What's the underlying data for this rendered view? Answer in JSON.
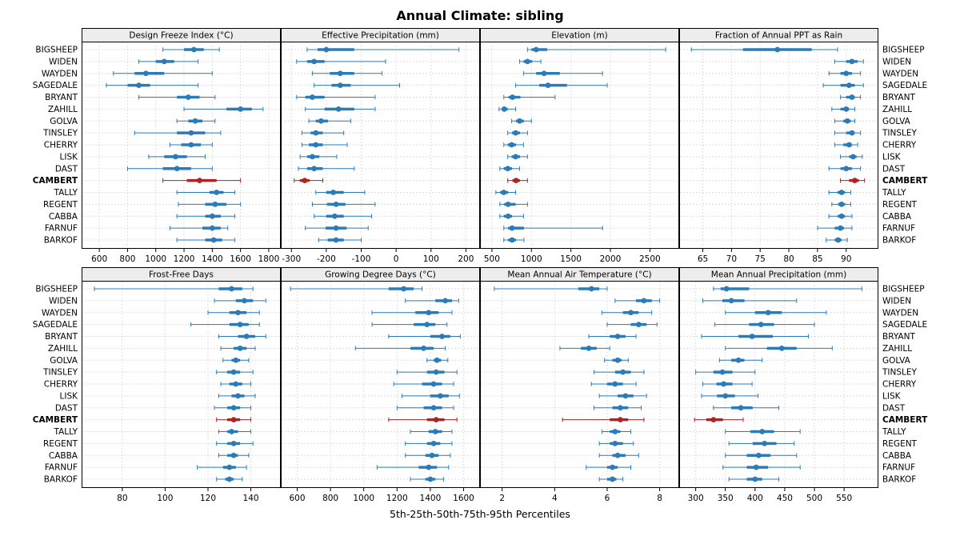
{
  "chart_data": {
    "type": "dotplot",
    "title": "Annual Climate: sibling",
    "caption": "5th-25th-50th-75th-95th Percentiles",
    "percentiles": [
      "5th",
      "25th",
      "50th",
      "75th",
      "95th"
    ],
    "layout": {
      "rows": 2,
      "cols": 4,
      "grid": "dotted",
      "legend": "none",
      "site_labels": "both-sides"
    },
    "colors": {
      "series": "#2b7bb9",
      "highlight": "#b22222",
      "strip_bg": "#ededed",
      "grid": "#bdbdbd",
      "border": "#000000"
    },
    "highlight_site": "CAMBERT",
    "sites": [
      "BIGSHEEP",
      "WIDEN",
      "WAYDEN",
      "SAGEDALE",
      "BRYANT",
      "ZAHILL",
      "GOLVA",
      "TINSLEY",
      "CHERRY",
      "LISK",
      "DAST",
      "CAMBERT",
      "TALLY",
      "REGENT",
      "CABBA",
      "FARNUF",
      "BARKOF"
    ],
    "panels": [
      {
        "title": "Design Freeze Index (°C)",
        "ticks": [
          600,
          800,
          1000,
          1200,
          1400,
          1600,
          1800
        ],
        "xlim": [
          520,
          1840
        ],
        "values": [
          [
            1050,
            1200,
            1270,
            1340,
            1450
          ],
          [
            880,
            1000,
            1060,
            1130,
            1300
          ],
          [
            700,
            850,
            930,
            1060,
            1400
          ],
          [
            650,
            800,
            880,
            960,
            1300
          ],
          [
            880,
            1150,
            1230,
            1310,
            1420
          ],
          [
            1200,
            1500,
            1600,
            1680,
            1760
          ],
          [
            1150,
            1230,
            1280,
            1330,
            1420
          ],
          [
            850,
            1150,
            1250,
            1350,
            1460
          ],
          [
            1100,
            1180,
            1250,
            1320,
            1400
          ],
          [
            950,
            1060,
            1140,
            1220,
            1350
          ],
          [
            800,
            1050,
            1150,
            1250,
            1400
          ],
          [
            1050,
            1220,
            1310,
            1430,
            1600
          ],
          [
            1150,
            1380,
            1430,
            1480,
            1560
          ],
          [
            1160,
            1350,
            1420,
            1500,
            1600
          ],
          [
            1150,
            1350,
            1400,
            1460,
            1560
          ],
          [
            1100,
            1330,
            1400,
            1460,
            1510
          ],
          [
            1150,
            1350,
            1410,
            1470,
            1560
          ]
        ]
      },
      {
        "title": "Effective Precipitation (mm)",
        "ticks": [
          -300,
          -200,
          -100,
          0,
          100,
          200
        ],
        "xlim": [
          -312,
          222
        ],
        "values": [
          [
            -255,
            -225,
            -200,
            -120,
            180
          ],
          [
            -285,
            -255,
            -235,
            -205,
            -30
          ],
          [
            -240,
            -190,
            -160,
            -120,
            -40
          ],
          [
            -235,
            -185,
            -160,
            -130,
            10
          ],
          [
            -285,
            -260,
            -240,
            -205,
            -60
          ],
          [
            -260,
            -205,
            -165,
            -120,
            -60
          ],
          [
            -250,
            -230,
            -215,
            -195,
            -130
          ],
          [
            -270,
            -245,
            -230,
            -210,
            -150
          ],
          [
            -270,
            -250,
            -230,
            -210,
            -140
          ],
          [
            -275,
            -255,
            -240,
            -220,
            -170
          ],
          [
            -280,
            -255,
            -235,
            -210,
            -120
          ],
          [
            -292,
            -276,
            -262,
            -248,
            -210
          ],
          [
            -230,
            -200,
            -180,
            -150,
            -90
          ],
          [
            -240,
            -198,
            -172,
            -145,
            -60
          ],
          [
            -235,
            -200,
            -176,
            -150,
            -70
          ],
          [
            -260,
            -202,
            -172,
            -142,
            -80
          ],
          [
            -222,
            -196,
            -172,
            -150,
            -100
          ]
        ]
      },
      {
        "title": "Elevation (m)",
        "ticks": [
          500,
          1000,
          1500,
          2000,
          2500
        ],
        "xlim": [
          430,
          2790
        ],
        "values": [
          [
            950,
            1000,
            1060,
            1200,
            2700
          ],
          [
            850,
            900,
            950,
            1010,
            1120
          ],
          [
            900,
            1060,
            1160,
            1360,
            1900
          ],
          [
            800,
            1100,
            1210,
            1450,
            1960
          ],
          [
            650,
            710,
            760,
            860,
            1300
          ],
          [
            590,
            625,
            655,
            700,
            800
          ],
          [
            750,
            805,
            850,
            905,
            1000
          ],
          [
            700,
            755,
            800,
            855,
            950
          ],
          [
            650,
            700,
            750,
            805,
            900
          ],
          [
            700,
            750,
            800,
            855,
            950
          ],
          [
            600,
            650,
            700,
            755,
            850
          ],
          [
            700,
            760,
            805,
            855,
            950
          ],
          [
            550,
            605,
            650,
            705,
            800
          ],
          [
            600,
            655,
            705,
            800,
            950
          ],
          [
            600,
            650,
            705,
            755,
            900
          ],
          [
            650,
            705,
            755,
            905,
            1900
          ],
          [
            650,
            705,
            755,
            805,
            905
          ]
        ]
      },
      {
        "title": "Fraction of Annual PPT as Rain",
        "ticks": [
          65,
          70,
          75,
          80,
          85,
          90
        ],
        "xlim": [
          62,
          94.5
        ],
        "values": [
          [
            63,
            72,
            78,
            84,
            88.5
          ],
          [
            88,
            90,
            91,
            92,
            93
          ],
          [
            87,
            89,
            90,
            91,
            92.5
          ],
          [
            86,
            89,
            90.5,
            91.5,
            93
          ],
          [
            89,
            90,
            91,
            91.5,
            92.5
          ],
          [
            87.5,
            89,
            90,
            90.5,
            91.5
          ],
          [
            88,
            89.5,
            90.2,
            90.8,
            91.5
          ],
          [
            88,
            90,
            91,
            91.5,
            92.5
          ],
          [
            88,
            89.5,
            90.5,
            91,
            92
          ],
          [
            89,
            90.5,
            91.2,
            91.8,
            92.8
          ],
          [
            87,
            89,
            90,
            91,
            92.5
          ],
          [
            89,
            90.5,
            91.5,
            92.2,
            93.2
          ],
          [
            87,
            88.5,
            89.2,
            89.8,
            90.8
          ],
          [
            87.5,
            88.6,
            89.2,
            89.8,
            90.8
          ],
          [
            87,
            88.5,
            89.2,
            89.8,
            91
          ],
          [
            85,
            88,
            89,
            89.6,
            91
          ],
          [
            86.5,
            88,
            88.6,
            89.2,
            90.2
          ]
        ]
      },
      {
        "title": "Frost-Free Days",
        "ticks": [
          80,
          100,
          120,
          140
        ],
        "xlim": [
          64,
          151
        ],
        "values": [
          [
            67,
            125,
            131,
            136,
            141
          ],
          [
            123,
            133,
            137,
            141,
            147
          ],
          [
            120,
            130,
            134,
            138,
            144
          ],
          [
            112,
            130,
            135,
            139,
            144
          ],
          [
            125,
            134,
            138,
            142,
            147
          ],
          [
            126,
            132,
            135,
            138,
            142
          ],
          [
            127,
            131,
            133,
            135,
            139
          ],
          [
            124,
            129,
            132,
            135,
            141
          ],
          [
            126,
            130,
            133,
            136,
            140
          ],
          [
            125,
            131,
            134,
            137,
            142
          ],
          [
            123,
            129,
            132,
            135,
            140
          ],
          [
            124,
            129,
            132,
            135,
            140
          ],
          [
            125,
            129,
            131,
            134,
            140
          ],
          [
            124,
            129,
            132,
            135,
            141
          ],
          [
            125,
            129,
            132,
            134,
            139
          ],
          [
            115,
            127,
            130,
            133,
            138
          ],
          [
            124,
            128,
            130,
            132,
            136
          ]
        ]
      },
      {
        "title": "Growing Degree Days (°C)",
        "ticks": [
          600,
          800,
          1000,
          1200,
          1400,
          1600
        ],
        "xlim": [
          540,
          1660
        ],
        "values": [
          [
            560,
            1150,
            1240,
            1300,
            1350
          ],
          [
            1250,
            1430,
            1490,
            1530,
            1570
          ],
          [
            1050,
            1310,
            1390,
            1450,
            1530
          ],
          [
            1050,
            1300,
            1380,
            1430,
            1500
          ],
          [
            1150,
            1400,
            1470,
            1520,
            1580
          ],
          [
            950,
            1280,
            1360,
            1420,
            1490
          ],
          [
            1380,
            1420,
            1440,
            1465,
            1505
          ],
          [
            1200,
            1380,
            1435,
            1485,
            1560
          ],
          [
            1180,
            1350,
            1420,
            1470,
            1540
          ],
          [
            1230,
            1400,
            1460,
            1510,
            1575
          ],
          [
            1200,
            1360,
            1420,
            1470,
            1540
          ],
          [
            1150,
            1380,
            1435,
            1485,
            1560
          ],
          [
            1280,
            1390,
            1430,
            1470,
            1530
          ],
          [
            1250,
            1380,
            1420,
            1460,
            1530
          ],
          [
            1250,
            1370,
            1410,
            1450,
            1520
          ],
          [
            1080,
            1330,
            1390,
            1440,
            1510
          ],
          [
            1280,
            1370,
            1400,
            1430,
            1480
          ]
        ]
      },
      {
        "title": "Mean Annual Air Temperature (°C)",
        "ticks": [
          2,
          4,
          6,
          8
        ],
        "xlim": [
          1.4,
          8.5
        ],
        "values": [
          [
            1.7,
            4.9,
            5.4,
            5.7,
            6.0
          ],
          [
            6.3,
            7.1,
            7.4,
            7.7,
            8.0
          ],
          [
            5.8,
            6.6,
            6.9,
            7.2,
            7.7
          ],
          [
            6.0,
            6.9,
            7.2,
            7.5,
            7.9
          ],
          [
            5.3,
            6.1,
            6.4,
            6.7,
            7.1
          ],
          [
            4.2,
            5.0,
            5.3,
            5.6,
            6.1
          ],
          [
            5.9,
            6.2,
            6.4,
            6.55,
            6.8
          ],
          [
            5.5,
            6.3,
            6.6,
            6.9,
            7.4
          ],
          [
            5.4,
            6.0,
            6.3,
            6.6,
            7.1
          ],
          [
            5.7,
            6.4,
            6.7,
            7.0,
            7.5
          ],
          [
            5.5,
            6.2,
            6.5,
            6.8,
            7.3
          ],
          [
            4.3,
            6.1,
            6.5,
            6.8,
            7.4
          ],
          [
            5.8,
            6.1,
            6.3,
            6.5,
            6.9
          ],
          [
            5.7,
            6.1,
            6.3,
            6.6,
            7.0
          ],
          [
            5.7,
            6.2,
            6.4,
            6.7,
            7.2
          ],
          [
            5.2,
            6.0,
            6.2,
            6.4,
            6.9
          ],
          [
            5.7,
            6.0,
            6.2,
            6.35,
            6.6
          ]
        ]
      },
      {
        "title": "Mean Annual Precipitation (mm)",
        "ticks": [
          300,
          350,
          400,
          450,
          500,
          550
        ],
        "xlim": [
          283,
          597
        ],
        "values": [
          [
            330,
            342,
            352,
            390,
            580
          ],
          [
            312,
            345,
            360,
            382,
            470
          ],
          [
            350,
            400,
            422,
            445,
            520
          ],
          [
            332,
            390,
            410,
            432,
            500
          ],
          [
            310,
            372,
            395,
            430,
            490
          ],
          [
            350,
            420,
            445,
            470,
            530
          ],
          [
            340,
            360,
            372,
            382,
            412
          ],
          [
            300,
            330,
            345,
            362,
            400
          ],
          [
            312,
            335,
            347,
            362,
            395
          ],
          [
            310,
            336,
            350,
            366,
            405
          ],
          [
            330,
            360,
            376,
            396,
            440
          ],
          [
            298,
            318,
            330,
            346,
            380
          ],
          [
            350,
            392,
            412,
            432,
            476
          ],
          [
            356,
            396,
            416,
            436,
            466
          ],
          [
            350,
            386,
            406,
            426,
            470
          ],
          [
            346,
            386,
            402,
            422,
            476
          ],
          [
            356,
            386,
            400,
            412,
            440
          ]
        ]
      }
    ]
  }
}
